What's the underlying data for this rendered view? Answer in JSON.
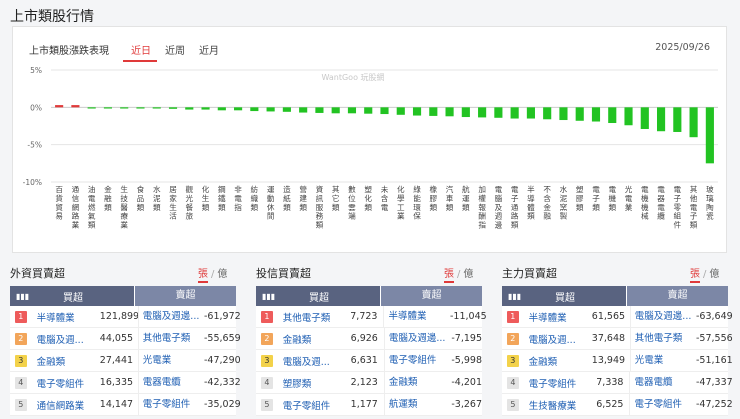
{
  "page_title": "上市類股行情",
  "chart_section": {
    "heading": "上市類股漲跌表現",
    "tabs": [
      "近日",
      "近周",
      "近月"
    ],
    "active_tab": "近日",
    "date": "2025/09/26",
    "watermark": "WantGoo 玩股網"
  },
  "chart_data": {
    "type": "bar",
    "y_ticks": [
      "5%",
      "0%",
      "-5%",
      "-10%"
    ],
    "ylim": [
      -10,
      5
    ],
    "grid": true,
    "categories": [
      "百貨貿易",
      "通信網路業",
      "油電燃氣類",
      "金融類",
      "生技醫療業",
      "食品類",
      "水泥類",
      "居家生活",
      "觀光餐旅",
      "化生類",
      "鋼鐵類",
      "非電指",
      "紡織類",
      "運動休閒",
      "造紙類",
      "營建類",
      "資訊服務類",
      "其它類",
      "數位雲端",
      "塑化類",
      "未含電",
      "化學工業",
      "綠能環保",
      "橡膠類",
      "汽車類",
      "航運類",
      "加權報酬指",
      "電腦及週邊",
      "電子通路類",
      "半導體類",
      "不含金融",
      "水泥窯製",
      "塑膠類",
      "電子類",
      "電機類",
      "光電業",
      "電機機械",
      "電器電纜",
      "電子零組件",
      "其他電子類",
      "玻璃陶瓷"
    ],
    "values": [
      0.3,
      0.3,
      -0.05,
      -0.1,
      -0.1,
      -0.15,
      -0.15,
      -0.2,
      -0.3,
      -0.3,
      -0.4,
      -0.4,
      -0.5,
      -0.55,
      -0.6,
      -0.7,
      -0.75,
      -0.8,
      -0.8,
      -0.85,
      -0.9,
      -1.0,
      -1.1,
      -1.15,
      -1.2,
      -1.3,
      -1.35,
      -1.4,
      -1.5,
      -1.5,
      -1.6,
      -1.7,
      -1.8,
      -1.9,
      -2.1,
      -2.4,
      -2.9,
      -3.2,
      -3.3,
      -4.0,
      -7.5
    ],
    "colors": {
      "up": "#e03a3a",
      "down": "#22c322",
      "grid": "#e5e5e5",
      "zero": "#cccccc"
    }
  },
  "tables": [
    {
      "title": "外資買賣超",
      "unit_zhang": "張",
      "unit_yi": "億",
      "head_buy": "買超",
      "head_sell": "賣超",
      "rows": [
        {
          "rank": "1",
          "buy_name": "半導體業",
          "buy_val": "121,899",
          "sell_name": "電腦及週邊...",
          "sell_val": "-61,972"
        },
        {
          "rank": "2",
          "buy_name": "電腦及週...",
          "buy_val": "44,055",
          "sell_name": "其他電子類",
          "sell_val": "-55,659"
        },
        {
          "rank": "3",
          "buy_name": "金融類",
          "buy_val": "27,441",
          "sell_name": "光電業",
          "sell_val": "-47,290"
        },
        {
          "rank": "4",
          "buy_name": "電子零組件",
          "buy_val": "16,335",
          "sell_name": "電器電纜",
          "sell_val": "-42,332"
        },
        {
          "rank": "5",
          "buy_name": "通信網路業",
          "buy_val": "14,147",
          "sell_name": "電子零組件",
          "sell_val": "-35,029"
        }
      ]
    },
    {
      "title": "投信買賣超",
      "unit_zhang": "張",
      "unit_yi": "億",
      "head_buy": "買超",
      "head_sell": "賣超",
      "rows": [
        {
          "rank": "1",
          "buy_name": "其他電子類",
          "buy_val": "7,723",
          "sell_name": "半導體業",
          "sell_val": "-11,045"
        },
        {
          "rank": "2",
          "buy_name": "金融類",
          "buy_val": "6,926",
          "sell_name": "電腦及週邊...",
          "sell_val": "-7,195"
        },
        {
          "rank": "3",
          "buy_name": "電腦及週...",
          "buy_val": "6,631",
          "sell_name": "電子零組件",
          "sell_val": "-5,998"
        },
        {
          "rank": "4",
          "buy_name": "塑膠類",
          "buy_val": "2,123",
          "sell_name": "金融類",
          "sell_val": "-4,201"
        },
        {
          "rank": "5",
          "buy_name": "電子零組件",
          "buy_val": "1,177",
          "sell_name": "航運類",
          "sell_val": "-3,267"
        }
      ]
    },
    {
      "title": "主力買賣超",
      "unit_zhang": "張",
      "unit_yi": "億",
      "head_buy": "買超",
      "head_sell": "賣超",
      "rows": [
        {
          "rank": "1",
          "buy_name": "半導體業",
          "buy_val": "61,565",
          "sell_name": "電腦及週邊...",
          "sell_val": "-63,649"
        },
        {
          "rank": "2",
          "buy_name": "電腦及週...",
          "buy_val": "37,648",
          "sell_name": "其他電子類",
          "sell_val": "-57,556"
        },
        {
          "rank": "3",
          "buy_name": "金融類",
          "buy_val": "13,949",
          "sell_name": "光電業",
          "sell_val": "-51,161"
        },
        {
          "rank": "4",
          "buy_name": "電子零組件",
          "buy_val": "7,338",
          "sell_name": "電器電纜",
          "sell_val": "-47,337"
        },
        {
          "rank": "5",
          "buy_name": "生技醫療業",
          "buy_val": "6,525",
          "sell_name": "電子零組件",
          "sell_val": "-47,252"
        }
      ]
    }
  ]
}
